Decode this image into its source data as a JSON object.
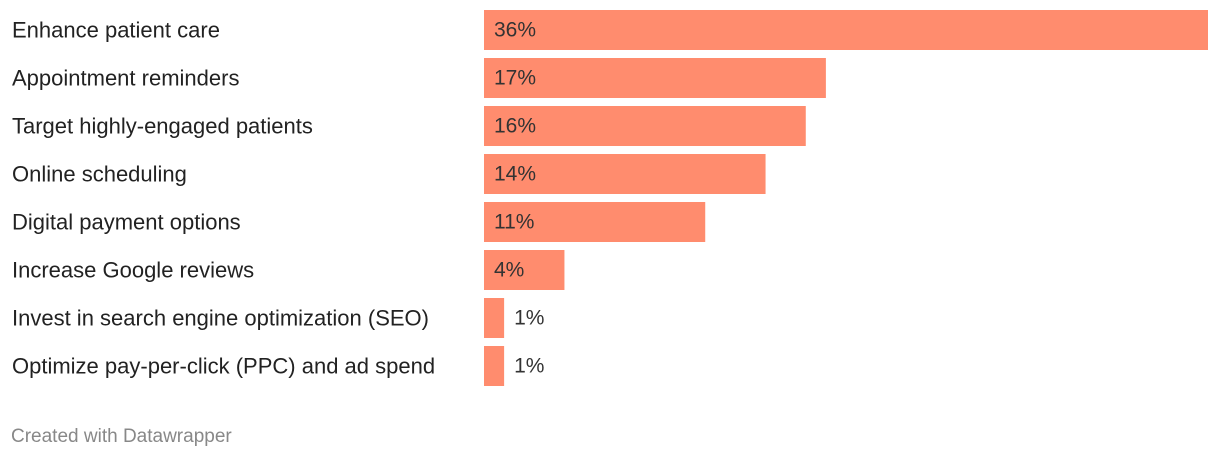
{
  "chart_data": {
    "type": "bar",
    "orientation": "horizontal",
    "categories": [
      "Enhance patient care",
      "Appointment reminders",
      "Target highly-engaged patients",
      "Online scheduling",
      "Digital payment options",
      "Increase Google reviews",
      "Invest in search engine optimization (SEO)",
      "Optimize pay-per-click (PPC) and ad spend"
    ],
    "values": [
      36,
      17,
      16,
      14,
      11,
      4,
      1,
      1
    ],
    "value_labels": [
      "36%",
      "17%",
      "16%",
      "14%",
      "11%",
      "4%",
      "1%",
      "1%"
    ],
    "xlim": [
      0,
      36
    ],
    "bar_color": "#ff8c6e",
    "grid": false,
    "legend": "none"
  },
  "footer": {
    "credit": "Created with Datawrapper"
  }
}
